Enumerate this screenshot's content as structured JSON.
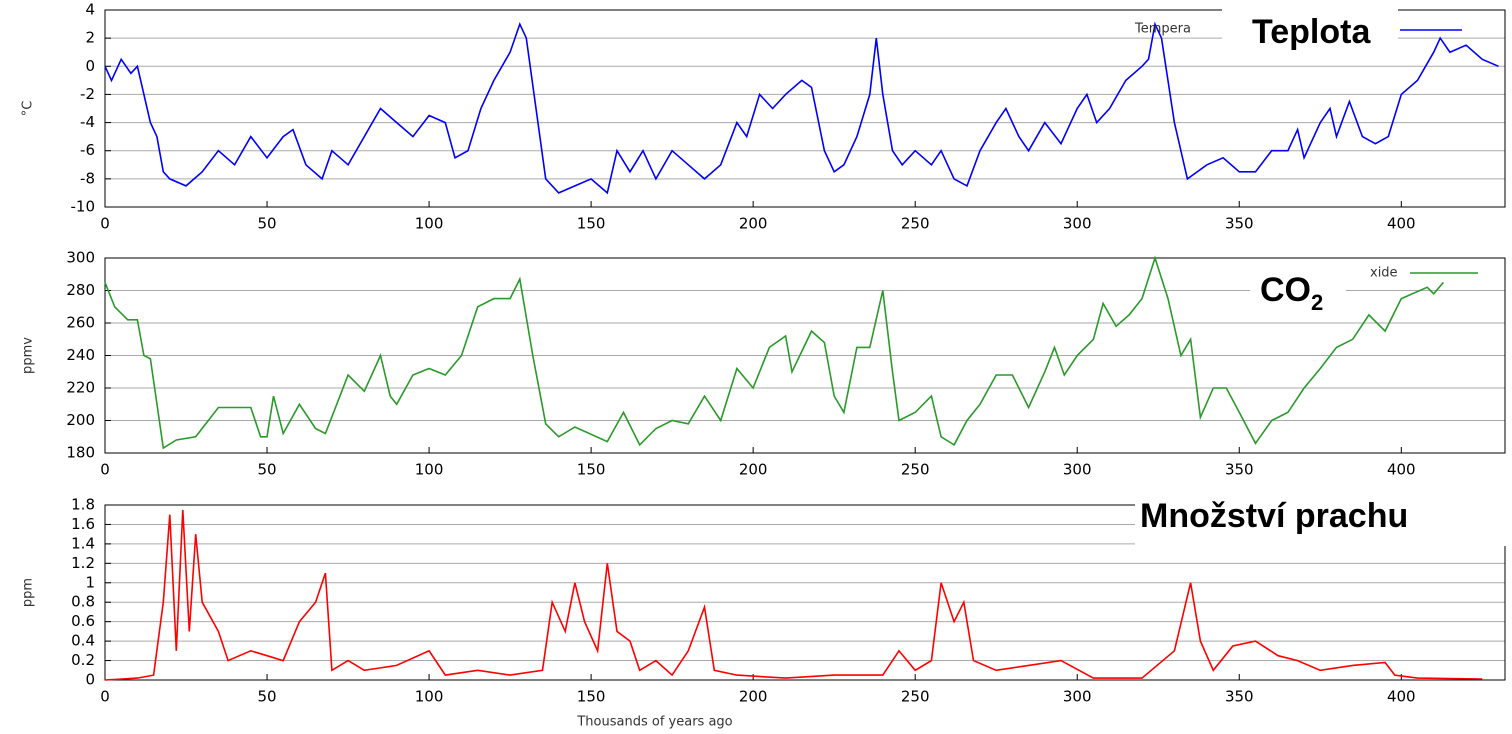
{
  "chart_data": [
    {
      "type": "line",
      "ylabel": "°C",
      "legend_text": "Tempera",
      "x": [
        0,
        2,
        5,
        8,
        10,
        12,
        14,
        16,
        18,
        20,
        25,
        30,
        35,
        40,
        45,
        50,
        55,
        58,
        62,
        67,
        70,
        75,
        80,
        85,
        90,
        95,
        100,
        105,
        108,
        112,
        116,
        120,
        125,
        128,
        130,
        133,
        136,
        140,
        145,
        150,
        155,
        158,
        162,
        166,
        170,
        175,
        180,
        185,
        190,
        195,
        198,
        202,
        206,
        210,
        215,
        218,
        222,
        225,
        228,
        232,
        236,
        238,
        240,
        243,
        246,
        250,
        255,
        258,
        262,
        266,
        270,
        275,
        278,
        282,
        285,
        290,
        295,
        300,
        303,
        306,
        310,
        315,
        320,
        322,
        324,
        326,
        330,
        334,
        340,
        345,
        350,
        355,
        360,
        365,
        368,
        370,
        375,
        378,
        380,
        384,
        388,
        392,
        396,
        400,
        405,
        410,
        412,
        415,
        420,
        425,
        430
      ],
      "series": [
        {
          "name": "Teplota",
          "color": "#0000ff",
          "values": [
            0,
            -1,
            0.5,
            -0.5,
            0,
            -2,
            -4,
            -5,
            -7.5,
            -8,
            -8.5,
            -7.5,
            -6,
            -7,
            -5,
            -6.5,
            -5,
            -4.5,
            -7,
            -8,
            -6,
            -7,
            -5,
            -3,
            -4,
            -5,
            -3.5,
            -4,
            -6.5,
            -6,
            -3,
            -1,
            1,
            3,
            2,
            -3,
            -8,
            -9,
            -8.5,
            -8,
            -9,
            -6,
            -7.5,
            -6,
            -8,
            -6,
            -7,
            -8,
            -7,
            -4,
            -5,
            -2,
            -3,
            -2,
            -1,
            -1.5,
            -6,
            -7.5,
            -7,
            -5,
            -2,
            2,
            -2,
            -6,
            -7,
            -6,
            -7,
            -6,
            -8,
            -8.5,
            -6,
            -4,
            -3,
            -5,
            -6,
            -4,
            -5.5,
            -3,
            -2,
            -4,
            -3,
            -1,
            0,
            0.5,
            3,
            2,
            -4,
            -8,
            -7,
            -6.5,
            -7.5,
            -7.5,
            -6,
            -6,
            -4.5,
            -6.5,
            -4,
            -3,
            -5,
            -2.5,
            -5,
            -5.5,
            -5,
            -2,
            -1,
            1,
            2,
            1,
            1.5,
            0.5,
            0
          ]
        }
      ],
      "xlim": [
        0,
        432
      ],
      "xticks": [
        0,
        50,
        100,
        150,
        200,
        250,
        300,
        350,
        400
      ],
      "ylim": [
        -10,
        4
      ],
      "yticks": [
        -10,
        -8,
        -6,
        -4,
        -2,
        0,
        2,
        4
      ],
      "grid": true
    },
    {
      "type": "line",
      "ylabel": "ppmv",
      "legend_text": "xide",
      "x": [
        0,
        3,
        7,
        10,
        12,
        14,
        18,
        22,
        28,
        35,
        45,
        48,
        50,
        52,
        55,
        60,
        65,
        68,
        75,
        80,
        85,
        88,
        90,
        95,
        100,
        105,
        110,
        115,
        120,
        125,
        128,
        132,
        136,
        140,
        145,
        155,
        160,
        165,
        170,
        175,
        180,
        185,
        190,
        195,
        200,
        205,
        210,
        212,
        218,
        222,
        225,
        228,
        232,
        236,
        240,
        243,
        245,
        250,
        255,
        258,
        262,
        266,
        270,
        275,
        280,
        285,
        290,
        293,
        296,
        300,
        305,
        308,
        312,
        316,
        320,
        324,
        328,
        332,
        335,
        338,
        342,
        346,
        350,
        355,
        360,
        365,
        370,
        375,
        380,
        385,
        390,
        395,
        400,
        408,
        410,
        413
      ],
      "series": [
        {
          "name": "CO",
          "name_subscript": "2",
          "color": "#2a9a2a",
          "values": [
            285,
            270,
            262,
            262,
            240,
            238,
            183,
            188,
            190,
            208,
            208,
            190,
            190,
            215,
            192,
            210,
            195,
            192,
            228,
            218,
            240,
            215,
            210,
            228,
            232,
            228,
            240,
            270,
            275,
            275,
            287,
            240,
            198,
            190,
            196,
            187,
            205,
            185,
            195,
            200,
            198,
            215,
            200,
            232,
            220,
            245,
            252,
            230,
            255,
            248,
            215,
            205,
            245,
            245,
            280,
            230,
            200,
            205,
            215,
            190,
            185,
            200,
            210,
            228,
            228,
            208,
            230,
            245,
            228,
            240,
            250,
            272,
            258,
            265,
            275,
            300,
            275,
            240,
            250,
            202,
            220,
            220,
            205,
            186,
            200,
            205,
            220,
            232,
            245,
            250,
            265,
            255,
            275,
            282,
            278,
            285
          ]
        }
      ],
      "xlim": [
        0,
        432
      ],
      "xticks": [
        0,
        50,
        100,
        150,
        200,
        250,
        300,
        350,
        400
      ],
      "ylim": [
        180,
        300
      ],
      "yticks": [
        180,
        200,
        220,
        240,
        260,
        280,
        300
      ],
      "grid": true
    },
    {
      "type": "line",
      "ylabel": "ppm",
      "xlabel": "Thousands of years ago",
      "x": [
        0,
        10,
        15,
        18,
        20,
        22,
        24,
        26,
        28,
        30,
        35,
        38,
        45,
        50,
        55,
        60,
        65,
        68,
        70,
        75,
        80,
        90,
        100,
        105,
        115,
        125,
        135,
        138,
        142,
        145,
        148,
        152,
        155,
        158,
        162,
        165,
        170,
        175,
        180,
        185,
        188,
        195,
        210,
        225,
        240,
        245,
        250,
        255,
        258,
        262,
        265,
        268,
        275,
        285,
        295,
        305,
        320,
        330,
        335,
        338,
        342,
        348,
        355,
        362,
        368,
        375,
        385,
        395,
        398,
        405,
        425
      ],
      "series": [
        {
          "name": "Množství prachu",
          "color": "#ff0000",
          "values": [
            0,
            0.02,
            0.05,
            0.8,
            1.7,
            0.3,
            1.75,
            0.5,
            1.5,
            0.8,
            0.5,
            0.2,
            0.3,
            0.25,
            0.2,
            0.6,
            0.8,
            1.1,
            0.1,
            0.2,
            0.1,
            0.15,
            0.3,
            0.05,
            0.1,
            0.05,
            0.1,
            0.8,
            0.5,
            1.0,
            0.6,
            0.3,
            1.2,
            0.5,
            0.4,
            0.1,
            0.2,
            0.05,
            0.3,
            0.75,
            0.1,
            0.05,
            0.02,
            0.05,
            0.05,
            0.3,
            0.1,
            0.2,
            1.0,
            0.6,
            0.8,
            0.2,
            0.1,
            0.15,
            0.2,
            0.02,
            0.02,
            0.3,
            1.0,
            0.4,
            0.1,
            0.35,
            0.4,
            0.25,
            0.2,
            0.1,
            0.15,
            0.18,
            0.05,
            0.02,
            0.01
          ]
        }
      ],
      "xlim": [
        0,
        432
      ],
      "xticks": [
        0,
        50,
        100,
        150,
        200,
        250,
        300,
        350,
        400
      ],
      "ylim": [
        0,
        1.8
      ],
      "yticks": [
        0,
        0.2,
        0.4,
        0.6,
        0.8,
        1,
        1.2,
        1.4,
        1.6,
        1.8
      ],
      "grid": true
    }
  ]
}
